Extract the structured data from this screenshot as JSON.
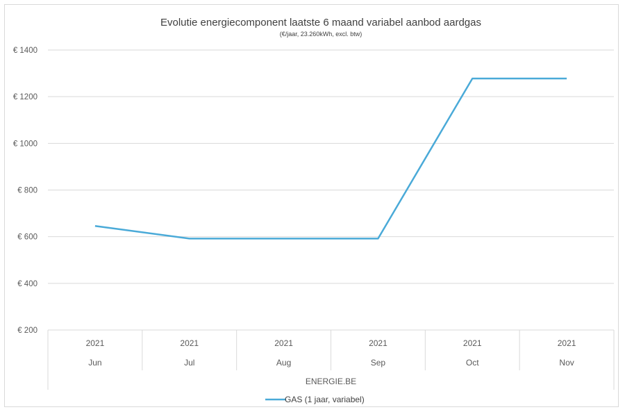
{
  "chart_data": {
    "type": "line",
    "title": "Evolutie energiecomponent laatste 6 maand variabel aanbod aardgas",
    "subtitle": "(€/jaar, 23.260kWh, excl. btw)",
    "categories": [
      {
        "year": "2021",
        "month": "Jun"
      },
      {
        "year": "2021",
        "month": "Jul"
      },
      {
        "year": "2021",
        "month": "Aug"
      },
      {
        "year": "2021",
        "month": "Sep"
      },
      {
        "year": "2021",
        "month": "Oct"
      },
      {
        "year": "2021",
        "month": "Nov"
      }
    ],
    "group_label": "ENERGIE.BE",
    "series": [
      {
        "name": "GAS (1 jaar, variabel)",
        "color": "#4aaad8",
        "values": [
          646,
          592,
          592,
          592,
          1278,
          1278
        ]
      }
    ],
    "yticks": [
      "€ 200",
      "€ 400",
      "€ 600",
      "€ 800",
      "€ 1000",
      "€ 1200",
      "€ 1400"
    ],
    "ylim": [
      200,
      1400
    ],
    "grid": true,
    "legend_position": "bottom"
  }
}
